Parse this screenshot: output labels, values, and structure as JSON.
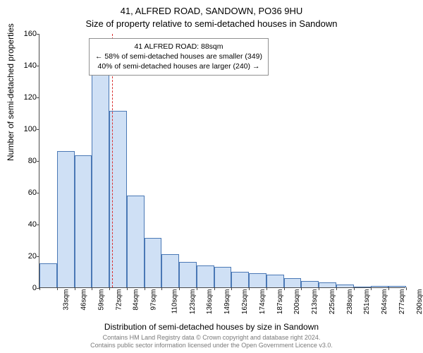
{
  "chart": {
    "type": "histogram",
    "title_line1": "41, ALFRED ROAD, SANDOWN, PO36 9HU",
    "title_line2": "Size of property relative to semi-detached houses in Sandown",
    "ylabel": "Number of semi-detached properties",
    "xlabel": "Distribution of semi-detached houses by size in Sandown",
    "background_color": "#ffffff",
    "axis_color": "#4a4a4a",
    "bar_fill": "#cfe0f5",
    "bar_stroke": "#4a78b5",
    "ylim": [
      0,
      160
    ],
    "ytick_step": 20,
    "yticks": [
      0,
      20,
      40,
      60,
      80,
      100,
      120,
      140,
      160
    ],
    "categories": [
      "33sqm",
      "46sqm",
      "59sqm",
      "72sqm",
      "84sqm",
      "97sqm",
      "110sqm",
      "123sqm",
      "136sqm",
      "149sqm",
      "162sqm",
      "174sqm",
      "187sqm",
      "200sqm",
      "213sqm",
      "225sqm",
      "238sqm",
      "251sqm",
      "264sqm",
      "277sqm",
      "290sqm"
    ],
    "values": [
      15,
      86,
      83,
      135,
      111,
      58,
      31,
      21,
      16,
      14,
      13,
      10,
      9,
      8,
      6,
      4,
      3,
      2,
      0,
      1,
      1
    ],
    "label_fontsize": 10,
    "axis_label_fontsize": 12,
    "title_fontsize": 13,
    "reference_line": {
      "position_index": 4.15,
      "color": "#d93030"
    },
    "annotation": {
      "line1": "41 ALFRED ROAD: 88sqm",
      "line2": "← 58% of semi-detached houses are smaller (349)",
      "line3": "40% of semi-detached houses are larger (240) →",
      "border_color": "#909090",
      "bg_color": "#ffffff"
    },
    "attribution_line1": "Contains HM Land Registry data © Crown copyright and database right 2024.",
    "attribution_line2": "Contains public sector information licensed under the Open Government Licence v3.0.",
    "attribution_color": "#7a7a7a"
  }
}
